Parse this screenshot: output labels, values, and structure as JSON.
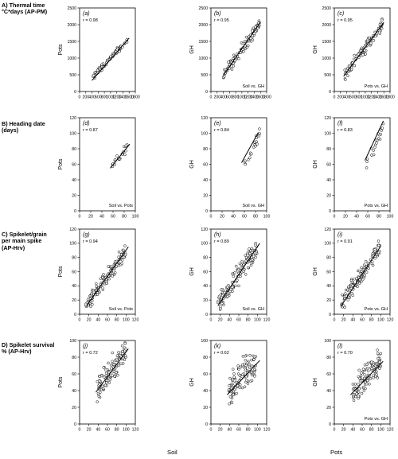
{
  "rows": [
    {
      "label": "A) Thermal time\n°C*days (AP-PM)"
    },
    {
      "label": "B) Heading date\n(days)"
    },
    {
      "label": "C) Spikelet/grain\nper main spike\n(AP-Hrv)"
    },
    {
      "label": "D) Spikelet survival\n% (AP-Hrv)"
    }
  ],
  "bottom_labels": {
    "soil": "Soil",
    "pots": "Pots"
  },
  "chart_data": [
    {
      "type": "scatter",
      "panel": "(a)",
      "r_label": "r = 0.98",
      "ylabel": "Pots",
      "comparison": "",
      "xlim": [
        0,
        1800
      ],
      "ylim": [
        0,
        2500
      ],
      "xticks": [
        0,
        200,
        400,
        600,
        800,
        1000,
        1200,
        1400,
        1600,
        1800
      ],
      "yticks": [
        0,
        500,
        1000,
        1500,
        2000,
        2500
      ],
      "n_points": 80,
      "x_range": [
        380,
        1560
      ],
      "fit": [
        0.0,
        1.0
      ],
      "noise": 60,
      "fit_line": [
        [
          400,
          330
        ],
        [
          1600,
          1600
        ]
      ]
    },
    {
      "type": "scatter",
      "panel": "(b)",
      "r_label": "r = 0.95",
      "ylabel": "GH",
      "comparison": "Soil vs. GH",
      "xlim": [
        0,
        1800
      ],
      "ylim": [
        0,
        2500
      ],
      "xticks": [
        0,
        200,
        400,
        600,
        800,
        1000,
        1200,
        1400,
        1600,
        1800
      ],
      "yticks": [
        0,
        500,
        1000,
        1500,
        2000,
        2500
      ],
      "n_points": 110,
      "x_range": [
        400,
        1580
      ],
      "fit": [
        0.0,
        1.27
      ],
      "noise": 120,
      "fit_line": [
        [
          400,
          480
        ],
        [
          1600,
          2080
        ]
      ]
    },
    {
      "type": "scatter",
      "panel": "(c)",
      "r_label": "r = 0.95",
      "ylabel": "GH",
      "comparison": "Pots vs. GH",
      "xlim": [
        0,
        1800
      ],
      "ylim": [
        0,
        2500
      ],
      "xticks": [
        0,
        200,
        400,
        600,
        800,
        1000,
        1200,
        1400,
        1600,
        1800
      ],
      "yticks": [
        0,
        500,
        1000,
        1500,
        2000,
        2500
      ],
      "n_points": 110,
      "x_range": [
        330,
        1580
      ],
      "fit": [
        80,
        1.25
      ],
      "noise": 120,
      "fit_line": [
        [
          300,
          450
        ],
        [
          1600,
          2070
        ]
      ]
    },
    {
      "type": "scatter",
      "panel": "(d)",
      "r_label": "r = 0.87",
      "ylabel": "Pots",
      "comparison": "Soil vs. Pots",
      "xlim": [
        0,
        100
      ],
      "ylim": [
        0,
        120
      ],
      "xticks": [
        0,
        20,
        40,
        60,
        80,
        100
      ],
      "yticks": [
        0,
        20,
        40,
        60,
        80,
        100,
        120
      ],
      "n_points": 22,
      "x_range": [
        58,
        88
      ],
      "fit": [
        10,
        0.85
      ],
      "noise": 4,
      "fit_line": [
        [
          55,
          55
        ],
        [
          90,
          86
        ]
      ]
    },
    {
      "type": "scatter",
      "panel": "(e)",
      "r_label": "r = 0.84",
      "ylabel": "GH",
      "comparison": "Soil vs. GH",
      "xlim": [
        0,
        100
      ],
      "ylim": [
        0,
        120
      ],
      "xticks": [
        0,
        20,
        40,
        60,
        80,
        100
      ],
      "yticks": [
        0,
        20,
        40,
        60,
        80,
        100,
        120
      ],
      "n_points": 22,
      "x_range": [
        58,
        88
      ],
      "fit": [
        -20,
        1.35
      ],
      "noise": 6,
      "fit_line": [
        [
          55,
          62
        ],
        [
          85,
          101
        ]
      ]
    },
    {
      "type": "scatter",
      "panel": "(f)",
      "r_label": "r = 0.83",
      "ylabel": "GH",
      "comparison": "Pots vs. GH",
      "xlim": [
        0,
        100
      ],
      "ylim": [
        0,
        120
      ],
      "xticks": [
        0,
        20,
        40,
        60,
        80,
        100
      ],
      "yticks": [
        0,
        20,
        40,
        60,
        80,
        100,
        120
      ],
      "n_points": 22,
      "x_range": [
        55,
        88
      ],
      "fit": [
        -30,
        1.55
      ],
      "noise": 6,
      "fit_line": [
        [
          55,
          65
        ],
        [
          88,
          116
        ]
      ]
    },
    {
      "type": "scatter",
      "panel": "(g)",
      "r_label": "r = 0.94",
      "ylabel": "Pots",
      "comparison": "Soil vs. Pots",
      "xlim": [
        0,
        120
      ],
      "ylim": [
        0,
        120
      ],
      "xticks": [
        0,
        20,
        40,
        60,
        80,
        100,
        120
      ],
      "yticks": [
        0,
        20,
        40,
        60,
        80,
        100,
        120
      ],
      "n_points": 140,
      "x_range": [
        12,
        100
      ],
      "fit": [
        0,
        0.9
      ],
      "noise": 7,
      "fit_line": [
        [
          15,
          12
        ],
        [
          105,
          95
        ]
      ]
    },
    {
      "type": "scatter",
      "panel": "(h)",
      "r_label": "r = 0.89",
      "ylabel": "GH",
      "comparison": "Soil vs. GH",
      "xlim": [
        0,
        120
      ],
      "ylim": [
        0,
        120
      ],
      "xticks": [
        0,
        20,
        40,
        60,
        80,
        100,
        120
      ],
      "yticks": [
        0,
        20,
        40,
        60,
        80,
        100,
        120
      ],
      "n_points": 140,
      "x_range": [
        15,
        100
      ],
      "fit": [
        -2,
        0.95
      ],
      "noise": 10,
      "fit_line": [
        [
          15,
          12
        ],
        [
          105,
          100
        ]
      ]
    },
    {
      "type": "scatter",
      "panel": "(i)",
      "r_label": "r = 0.91",
      "ylabel": "GH",
      "comparison": "Pots vs. GH",
      "xlim": [
        0,
        120
      ],
      "ylim": [
        0,
        120
      ],
      "xticks": [
        0,
        20,
        40,
        60,
        80,
        100,
        120
      ],
      "yticks": [
        0,
        20,
        40,
        60,
        80,
        100,
        120
      ],
      "n_points": 140,
      "x_range": [
        15,
        100
      ],
      "fit": [
        0,
        0.95
      ],
      "noise": 9,
      "fit_line": [
        [
          15,
          12
        ],
        [
          100,
          96
        ]
      ]
    },
    {
      "type": "scatter",
      "panel": "(j)",
      "r_label": "r = 0.72",
      "ylabel": "Pots",
      "comparison": "",
      "xlim": [
        0,
        120
      ],
      "ylim": [
        0,
        100
      ],
      "xticks": [
        0,
        20,
        40,
        60,
        80,
        100,
        120
      ],
      "yticks": [
        0,
        20,
        40,
        60,
        80,
        100
      ],
      "n_points": 120,
      "x_range": [
        38,
        100
      ],
      "fit": [
        10,
        0.78
      ],
      "noise": 11,
      "fit_line": [
        [
          35,
          38
        ],
        [
          105,
          90
        ]
      ]
    },
    {
      "type": "scatter",
      "panel": "(k)",
      "r_label": "r = 0.62",
      "ylabel": "GH",
      "comparison": "",
      "xlim": [
        0,
        120
      ],
      "ylim": [
        0,
        100
      ],
      "xticks": [
        0,
        20,
        40,
        60,
        80,
        100,
        120
      ],
      "yticks": [
        0,
        20,
        40,
        60,
        80,
        100
      ],
      "n_points": 120,
      "x_range": [
        38,
        98
      ],
      "fit": [
        20,
        0.55
      ],
      "noise": 13,
      "fit_line": [
        [
          35,
          35
        ],
        [
          105,
          76
        ]
      ]
    },
    {
      "type": "scatter",
      "panel": "(l)",
      "r_label": "r = 0.70",
      "ylabel": "GH",
      "comparison": "Pots vs. GH",
      "xlim": [
        0,
        120
      ],
      "ylim": [
        0,
        100
      ],
      "xticks": [
        0,
        20,
        40,
        60,
        80,
        100,
        120
      ],
      "yticks": [
        0,
        20,
        40,
        60,
        80,
        100
      ],
      "n_points": 120,
      "x_range": [
        40,
        100
      ],
      "fit": [
        10,
        0.68
      ],
      "noise": 12,
      "fit_line": [
        [
          35,
          35
        ],
        [
          105,
          75
        ]
      ]
    }
  ]
}
